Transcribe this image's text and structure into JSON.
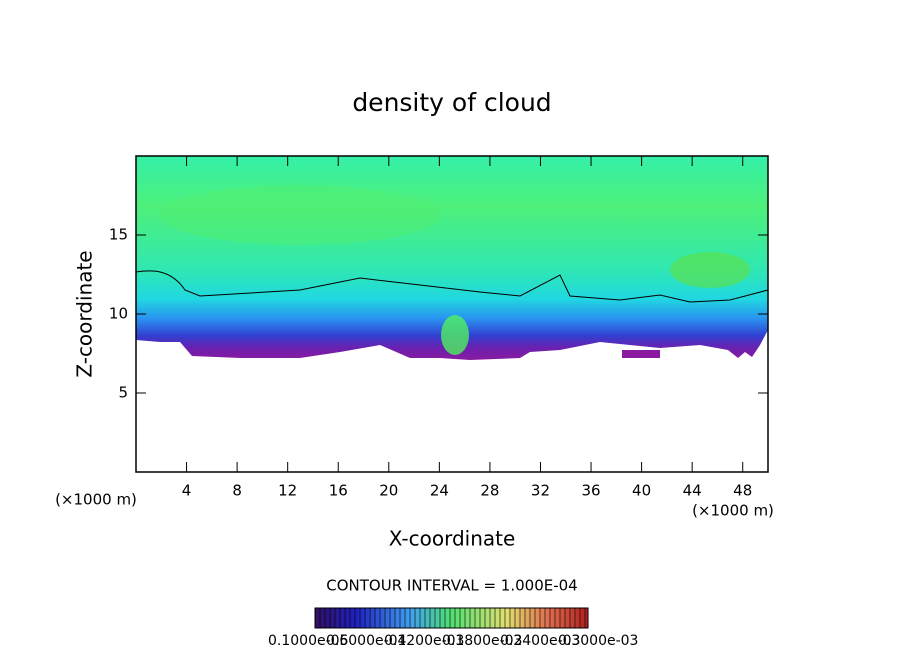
{
  "chart_data": {
    "type": "contour",
    "title": "density of cloud",
    "x_label": "X-coordinate",
    "y_label": "Z-coordinate",
    "y_unit_label": "(×1000 m)",
    "x_unit_label": "(×1000 m)",
    "xlim": [
      0,
      50
    ],
    "xticks": [
      4,
      8,
      12,
      16,
      20,
      24,
      28,
      32,
      36,
      40,
      44,
      48
    ],
    "ylim": [
      0,
      20
    ],
    "yticks": [
      5,
      10,
      15
    ],
    "contour_interval_label": "CONTOUR INTERVAL = 1.000E-04",
    "colorbar_labels": [
      "0.1000e-05",
      "0.6000e-04",
      "0.1200e-03",
      "0.1800e-03",
      "0.2400e-03",
      "0.3000e-03"
    ]
  }
}
